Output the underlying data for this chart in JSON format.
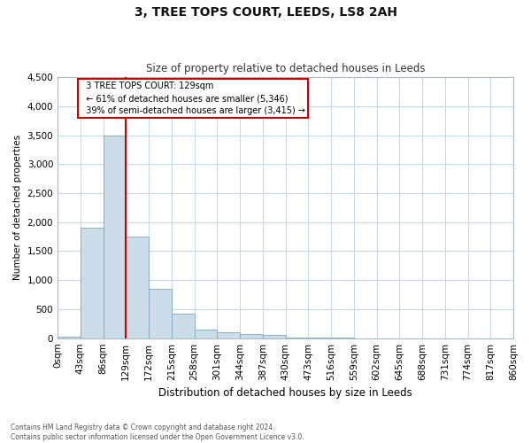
{
  "title": "3, TREE TOPS COURT, LEEDS, LS8 2AH",
  "subtitle": "Size of property relative to detached houses in Leeds",
  "xlabel": "Distribution of detached houses by size in Leeds",
  "ylabel": "Number of detached properties",
  "footnote1": "Contains HM Land Registry data © Crown copyright and database right 2024.",
  "footnote2": "Contains public sector information licensed under the Open Government Licence v3.0.",
  "annotation_line1": "3 TREE TOPS COURT: 129sqm",
  "annotation_line2": "← 61% of detached houses are smaller (5,346)",
  "annotation_line3": "39% of semi-detached houses are larger (3,415) →",
  "property_size": 129,
  "bin_edges": [
    0,
    43,
    86,
    129,
    172,
    215,
    258,
    301,
    344,
    387,
    430,
    473,
    516,
    559,
    602,
    645,
    688,
    731,
    774,
    817,
    860
  ],
  "bar_values": [
    30,
    1900,
    3500,
    1750,
    850,
    430,
    150,
    100,
    70,
    50,
    10,
    5,
    3,
    2,
    0,
    0,
    0,
    0,
    0,
    0
  ],
  "bar_color": "#ccdce8",
  "bar_edge_color": "#7aaabf",
  "vline_color": "#cc0000",
  "annotation_box_color": "#cc0000",
  "background_color": "#ffffff",
  "grid_color": "#c8d8e8",
  "ylim": [
    0,
    4500
  ],
  "yticks": [
    0,
    500,
    1000,
    1500,
    2000,
    2500,
    3000,
    3500,
    4000,
    4500
  ]
}
